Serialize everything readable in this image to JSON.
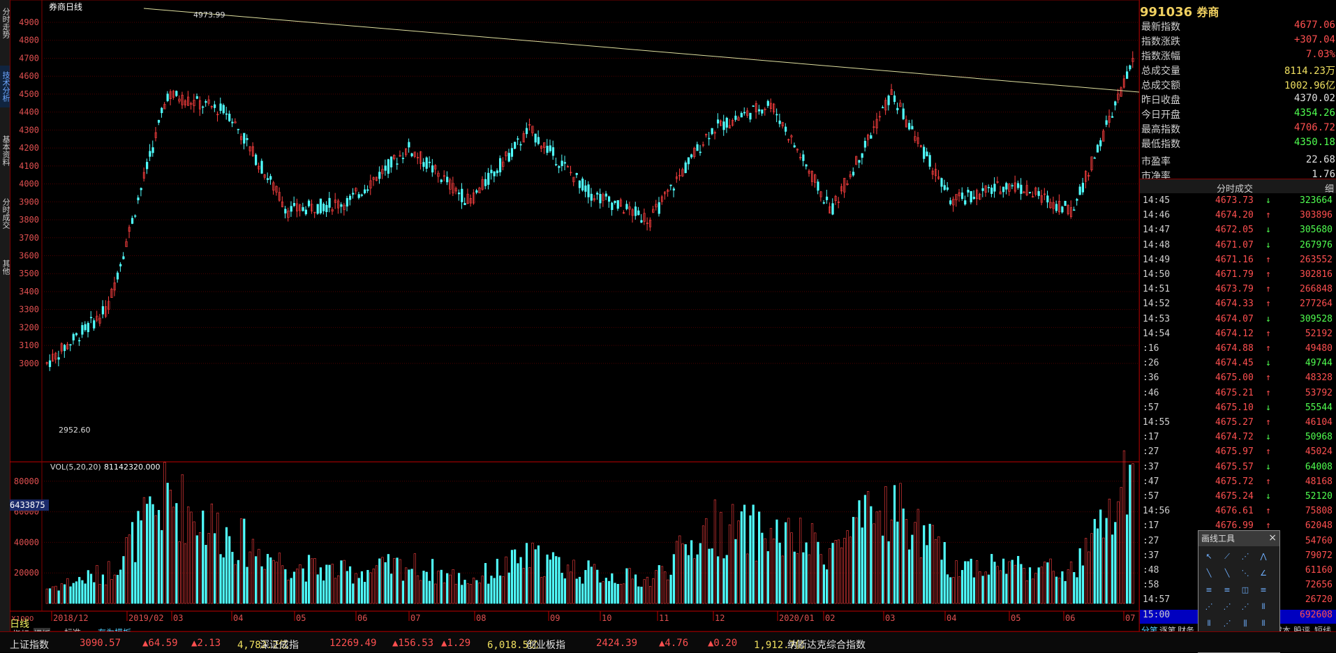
{
  "left_tabs": [
    {
      "label": "分时走势",
      "active": false
    },
    {
      "label": "技术分析",
      "active": true
    },
    {
      "label": "基本资料",
      "active": false
    },
    {
      "label": "分时成交",
      "active": false
    },
    {
      "label": "其他",
      "active": false
    }
  ],
  "chart": {
    "title": "券商日线",
    "max_label": "4973.99",
    "min_label": "2952.60",
    "vol_label": "VOL(5,20,20)",
    "vol_value": "81142320.000",
    "vol_side_value": "6433875",
    "vol_multiplier": "X1000",
    "y_ticks": [
      "4900",
      "4800",
      "4700",
      "4600",
      "4500",
      "4400",
      "4300",
      "4200",
      "4100",
      "4000",
      "3900",
      "3800",
      "3700",
      "3600",
      "3500",
      "3400",
      "3300",
      "3200",
      "3100",
      "3000"
    ],
    "vol_ticks": [
      "80000",
      "60000",
      "40000",
      "20000"
    ],
    "x_ticks": [
      "2018/12",
      "2019/02",
      "03",
      "04",
      "05",
      "06",
      "07",
      "08",
      "09",
      "10",
      "11",
      "12",
      "2020/01",
      "02",
      "03",
      "04",
      "05",
      "06",
      "07"
    ],
    "period_label": "日线",
    "tabs": [
      "指标",
      "模板",
      "标准",
      "存为模板"
    ]
  },
  "chart_data": {
    "type": "candlestick",
    "title": "券商日线",
    "ylim": [
      2900,
      5000
    ],
    "x": [
      "2018/12",
      "2019/02",
      "03",
      "04",
      "05",
      "06",
      "07",
      "08",
      "09",
      "10",
      "11",
      "12",
      "2020/01",
      "02",
      "03",
      "04",
      "05",
      "06",
      "07"
    ],
    "close_approx": [
      3000,
      3300,
      4500,
      4400,
      3850,
      3900,
      4200,
      3900,
      4300,
      3950,
      3800,
      4300,
      4450,
      3850,
      4500,
      3900,
      4000,
      3850,
      4677
    ],
    "volume_approx": [
      10000,
      20000,
      70000,
      45000,
      25000,
      20000,
      25000,
      15000,
      30000,
      20000,
      15000,
      50000,
      45000,
      35000,
      65000,
      25000,
      25000,
      20000,
      81142
    ]
  },
  "quote": {
    "code": "991036",
    "name": "券商",
    "rows": [
      {
        "k": "最新指数",
        "v": "4677.06",
        "c": "red"
      },
      {
        "k": "指数涨跌",
        "v": "+307.04",
        "c": "red"
      },
      {
        "k": "指数涨幅",
        "v": "7.03%",
        "c": "red"
      },
      {
        "k": "总成交量",
        "v": "8114.23万",
        "c": "yel"
      },
      {
        "k": "总成交额",
        "v": "1002.96亿",
        "c": "yel"
      },
      {
        "k": "昨日收盘",
        "v": "4370.02",
        "c": "wht"
      },
      {
        "k": "今日开盘",
        "v": "4354.26",
        "c": "grn"
      },
      {
        "k": "最高指数",
        "v": "4706.72",
        "c": "red"
      },
      {
        "k": "最低指数",
        "v": "4350.18",
        "c": "grn"
      },
      {
        "k": "市盈率",
        "v": "22.68",
        "c": "wht"
      },
      {
        "k": "市净率",
        "v": "1.76",
        "c": "wht"
      }
    ],
    "trades_title": "分时成交",
    "trades_detail": "细",
    "trades": [
      {
        "t": "14:45",
        "p": "4673.73",
        "d": "down",
        "v": "323664"
      },
      {
        "t": "14:46",
        "p": "4674.20",
        "d": "up",
        "v": "303896"
      },
      {
        "t": "14:47",
        "p": "4672.05",
        "d": "down",
        "v": "305680"
      },
      {
        "t": "14:48",
        "p": "4671.07",
        "d": "down",
        "v": "267976"
      },
      {
        "t": "14:49",
        "p": "4671.16",
        "d": "up",
        "v": "263552"
      },
      {
        "t": "14:50",
        "p": "4671.79",
        "d": "up",
        "v": "302816"
      },
      {
        "t": "14:51",
        "p": "4673.79",
        "d": "up",
        "v": "266848"
      },
      {
        "t": "14:52",
        "p": "4674.33",
        "d": "up",
        "v": "277264"
      },
      {
        "t": "14:53",
        "p": "4674.07",
        "d": "down",
        "v": "309528"
      },
      {
        "t": "14:54",
        "p": "4674.12",
        "d": "up",
        "v": "52192"
      },
      {
        "t": ":16",
        "p": "4674.88",
        "d": "up",
        "v": "49480"
      },
      {
        "t": ":26",
        "p": "4674.45",
        "d": "down",
        "v": "49744"
      },
      {
        "t": ":36",
        "p": "4675.00",
        "d": "up",
        "v": "48328"
      },
      {
        "t": ":46",
        "p": "4675.21",
        "d": "up",
        "v": "53792"
      },
      {
        "t": ":57",
        "p": "4675.10",
        "d": "down",
        "v": "55544"
      },
      {
        "t": "14:55",
        "p": "4675.27",
        "d": "up",
        "v": "46104"
      },
      {
        "t": ":17",
        "p": "4674.72",
        "d": "down",
        "v": "50968"
      },
      {
        "t": ":27",
        "p": "4675.97",
        "d": "up",
        "v": "45024"
      },
      {
        "t": ":37",
        "p": "4675.57",
        "d": "down",
        "v": "64008"
      },
      {
        "t": ":47",
        "p": "4675.72",
        "d": "up",
        "v": "48168"
      },
      {
        "t": ":57",
        "p": "4675.24",
        "d": "down",
        "v": "52120"
      },
      {
        "t": "14:56",
        "p": "4676.61",
        "d": "up",
        "v": "75808"
      },
      {
        "t": ":17",
        "p": "4676.99",
        "d": "up",
        "v": "62048"
      },
      {
        "t": ":27",
        "p": "",
        "d": "",
        "v": "54760"
      },
      {
        "t": ":37",
        "p": "",
        "d": "",
        "v": "79072"
      },
      {
        "t": ":48",
        "p": "",
        "d": "",
        "v": "61160"
      },
      {
        "t": ":58",
        "p": "",
        "d": "",
        "v": "72656"
      },
      {
        "t": "14:57",
        "p": "",
        "d": "",
        "v": "26720"
      },
      {
        "t": "15:00",
        "p": "",
        "d": "",
        "v": "692608"
      }
    ],
    "bottom_tabs": [
      "分笔",
      "逐笔",
      "财务",
      "成本",
      "股评",
      "短线"
    ]
  },
  "draw_tool": {
    "title": "画线工具",
    "close": "×"
  },
  "tickers": [
    {
      "name": "上证指数",
      "value": "3090.57",
      "chg": "▲64.59",
      "pct": "▲2.13",
      "amt": "4,782.2亿"
    },
    {
      "name": "深证成指",
      "value": "12269.49",
      "chg": "▲156.53",
      "pct": "▲1.29",
      "amt": "6,018.5亿"
    },
    {
      "name": "创业板指",
      "value": "2424.39",
      "chg": "▲4.76",
      "pct": "▲0.20",
      "amt": "1,912.7亿"
    },
    {
      "name": "纳斯达克综合指数",
      "value": "",
      "chg": "",
      "pct": "",
      "amt": ""
    }
  ],
  "colors": {
    "up": "#ff4040",
    "down": "#50ffff",
    "grid": "#800000",
    "axis": "#e05050",
    "trend": "#e0e0a0"
  }
}
